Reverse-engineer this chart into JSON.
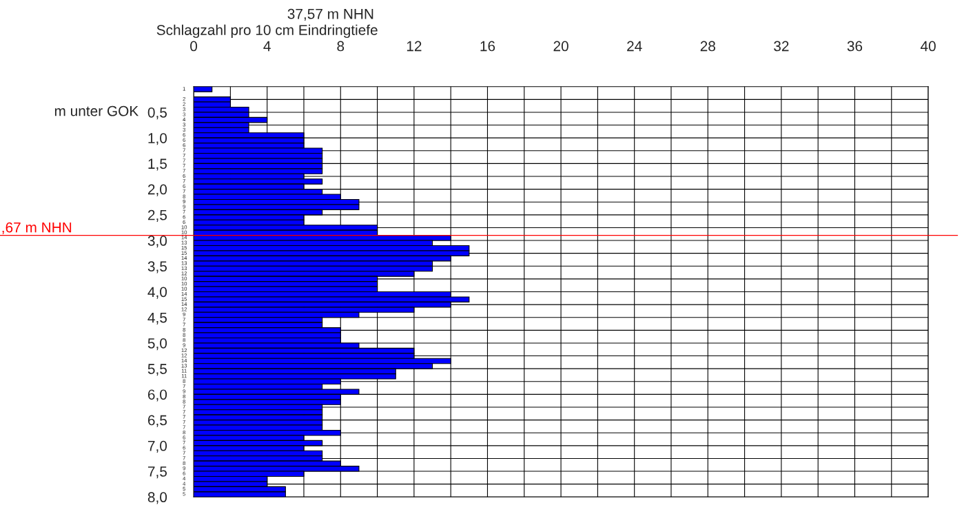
{
  "chart_data": {
    "type": "bar",
    "orientation": "horizontal",
    "title": "37,57 m NHN",
    "xlabel": "Schlagzahl pro 10 cm Eindringtiefe",
    "ylabel": "m unter GOK",
    "x": [
      0.05,
      0.15,
      0.25,
      0.35,
      0.45,
      0.55,
      0.65,
      0.75,
      0.85,
      0.95,
      1.05,
      1.15,
      1.25,
      1.35,
      1.45,
      1.55,
      1.65,
      1.75,
      1.85,
      1.95,
      2.05,
      2.15,
      2.25,
      2.35,
      2.45,
      2.55,
      2.65,
      2.75,
      2.85,
      2.95,
      3.05,
      3.15,
      3.25,
      3.35,
      3.45,
      3.55,
      3.65,
      3.75,
      3.85,
      3.95,
      4.05,
      4.15,
      4.25,
      4.35,
      4.45,
      4.55,
      4.65,
      4.75,
      4.85,
      4.95,
      5.05,
      5.15,
      5.25,
      5.35,
      5.45,
      5.55,
      5.65,
      5.75,
      5.85,
      5.95,
      6.05,
      6.15,
      6.25,
      6.35,
      6.45,
      6.55,
      6.65,
      6.75,
      6.85,
      6.95,
      7.05,
      7.15,
      7.25,
      7.35,
      7.45,
      7.55,
      7.65,
      7.75,
      7.85,
      7.95
    ],
    "values": [
      1,
      null,
      2,
      2,
      3,
      3,
      4,
      3,
      3,
      6,
      6,
      6,
      7,
      7,
      7,
      7,
      7,
      6,
      7,
      6,
      7,
      8,
      9,
      9,
      7,
      6,
      6,
      10,
      10,
      14,
      13,
      15,
      15,
      14,
      13,
      13,
      12,
      10,
      10,
      10,
      14,
      15,
      14,
      12,
      9,
      7,
      7,
      8,
      8,
      8,
      9,
      12,
      12,
      14,
      13,
      11,
      11,
      8,
      7,
      9,
      8,
      8,
      7,
      7,
      7,
      7,
      7,
      8,
      6,
      7,
      6,
      7,
      7,
      8,
      9,
      6,
      4,
      4,
      5,
      5
    ],
    "color": "#0000ff",
    "data_labels": true,
    "xlim": [
      0,
      40
    ],
    "xticks": [
      0,
      {
        "value": 2,
        "label": null
      },
      4,
      {
        "value": 6,
        "label": null
      },
      8,
      {
        "value": 10,
        "label": null
      },
      12,
      {
        "value": 14,
        "label": null
      },
      16,
      {
        "value": 18,
        "label": null
      },
      20,
      {
        "value": 22,
        "label": null
      },
      24,
      {
        "value": 26,
        "label": null
      },
      28,
      {
        "value": 30,
        "label": null
      },
      32,
      {
        "value": 34,
        "label": null
      },
      36,
      {
        "value": 38,
        "label": null
      },
      40
    ],
    "ylim": [
      8.0,
      0
    ],
    "yticks": [
      {
        "value": 0.25,
        "label": null
      },
      {
        "value": 0.5,
        "label": "0,5"
      },
      {
        "value": 0.75,
        "label": null
      },
      {
        "value": 1.0,
        "label": "1,0"
      },
      {
        "value": 1.25,
        "label": null
      },
      {
        "value": 1.5,
        "label": "1,5"
      },
      {
        "value": 1.75,
        "label": null
      },
      {
        "value": 2.0,
        "label": "2,0"
      },
      {
        "value": 2.25,
        "label": null
      },
      {
        "value": 2.5,
        "label": "2,5"
      },
      {
        "value": 2.75,
        "label": null
      },
      {
        "value": 3.0,
        "label": "3,0"
      },
      {
        "value": 3.25,
        "label": null
      },
      {
        "value": 3.5,
        "label": "3,5"
      },
      {
        "value": 3.75,
        "label": null
      },
      {
        "value": 4.0,
        "label": "4,0"
      },
      {
        "value": 4.25,
        "label": null
      },
      {
        "value": 4.5,
        "label": "4,5"
      },
      {
        "value": 4.75,
        "label": null
      },
      {
        "value": 5.0,
        "label": "5,0"
      },
      {
        "value": 5.25,
        "label": null
      },
      {
        "value": 5.5,
        "label": "5,5"
      },
      {
        "value": 5.75,
        "label": null
      },
      {
        "value": 6.0,
        "label": "6,0"
      },
      {
        "value": 6.25,
        "label": null
      },
      {
        "value": 6.5,
        "label": "6,5"
      },
      {
        "value": 6.75,
        "label": null
      },
      {
        "value": 7.0,
        "label": "7,0"
      },
      {
        "value": 7.25,
        "label": null
      },
      {
        "value": 7.5,
        "label": "7,5"
      },
      {
        "value": 7.75,
        "label": null
      },
      {
        "value": 8.0,
        "label": "8,0"
      }
    ],
    "grid": true,
    "legend": false,
    "ref_lines": [
      {
        "axis": "y",
        "value": 2.9,
        "label": ",67 m NHN",
        "color": "#ff0000"
      }
    ]
  }
}
